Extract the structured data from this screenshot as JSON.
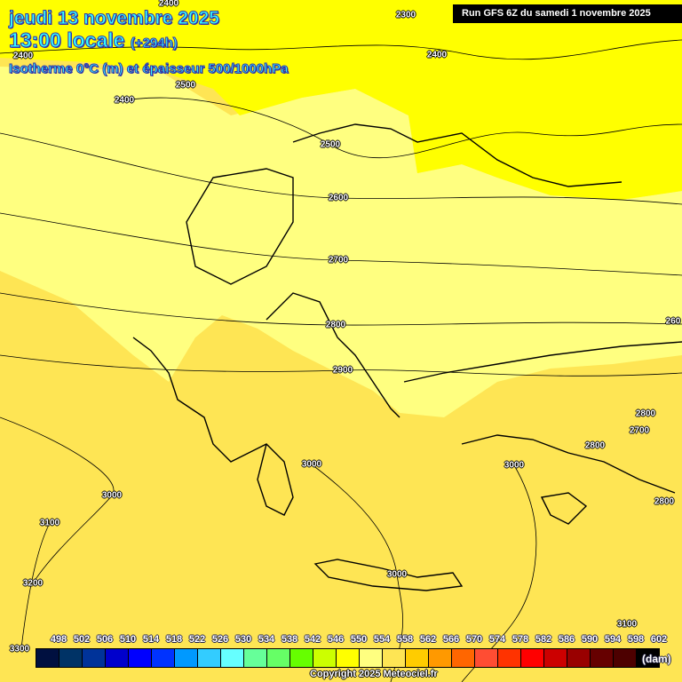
{
  "header": {
    "date": "jeudi 13 novembre 2025",
    "time": "13:00 locale",
    "lead": "(+294h)",
    "field": "Isotherme 0°C (m) et épaisseur 500/1000hPa",
    "run": "Run GFS 6Z du samedi 1 novembre 2025"
  },
  "fill_colors": {
    "550": "#ffff00",
    "554": "#ffff80",
    "558": "#fee554"
  },
  "contour_labels": [
    "2400",
    "2300",
    "2400",
    "2500",
    "2400",
    "2400",
    "2500",
    "2600",
    "2700",
    "2800",
    "2900",
    "3000",
    "3000",
    "2800",
    "2800",
    "2700",
    "2800",
    "3000",
    "3100",
    "3200",
    "3000",
    "3100",
    "3300",
    "260"
  ],
  "legend": {
    "unit": "(dam)",
    "values": [
      "498",
      "502",
      "506",
      "510",
      "514",
      "518",
      "522",
      "526",
      "530",
      "534",
      "538",
      "542",
      "546",
      "550",
      "554",
      "558",
      "562",
      "566",
      "570",
      "574",
      "578",
      "582",
      "586",
      "590",
      "594",
      "598",
      "602"
    ],
    "colors": [
      "#001040",
      "#003366",
      "#003399",
      "#0000cc",
      "#0000ff",
      "#0033ff",
      "#0099ff",
      "#33ccff",
      "#66ffff",
      "#66ff99",
      "#66ff66",
      "#66ff00",
      "#ccff00",
      "#ffff00",
      "#ffff80",
      "#fee554",
      "#ffcc00",
      "#ff9900",
      "#ff6600",
      "#ff4d33",
      "#ff3300",
      "#ff0000",
      "#cc0000",
      "#990000",
      "#660000",
      "#4d0000"
    ],
    "over_color": "#000000"
  },
  "copyright": "Copyright 2025 Meteociel.fr"
}
